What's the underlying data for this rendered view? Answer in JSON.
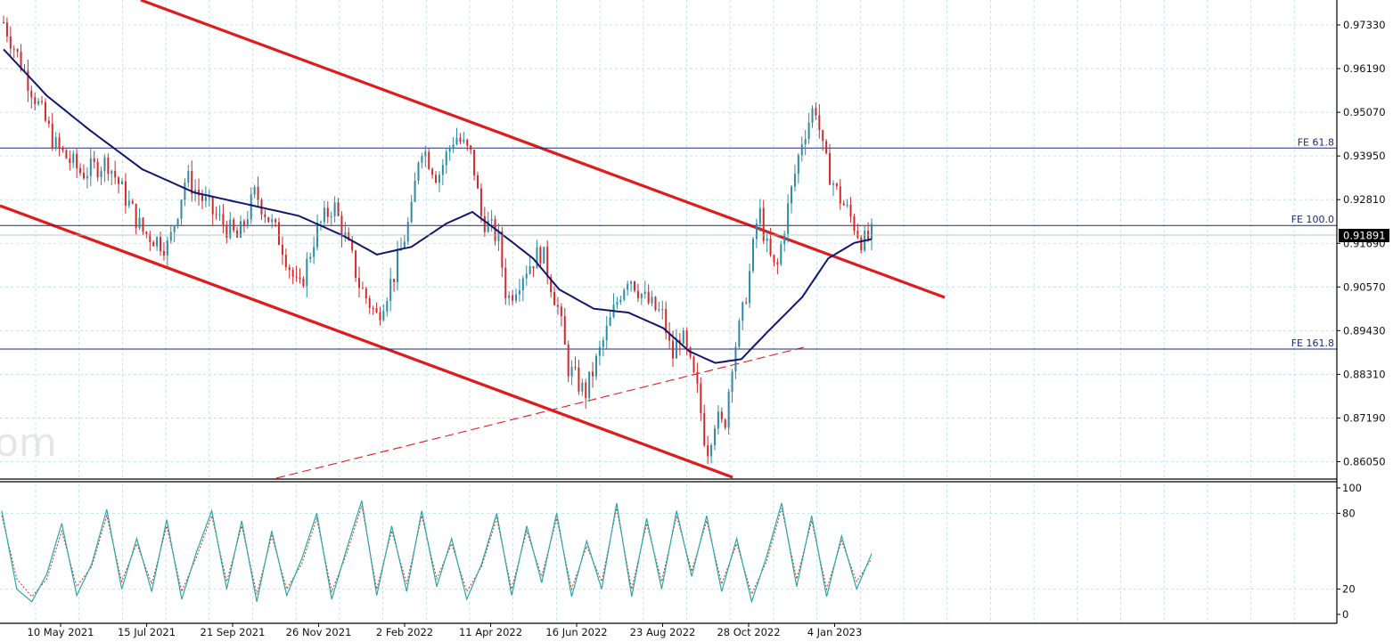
{
  "watermark": "om",
  "colors": {
    "background": "#ffffff",
    "grid": "#b8dde6",
    "candle_up": "#2e8ba3",
    "candle_down": "#cf2b2b",
    "moving_average": "#14156e",
    "trend_lines": "#e11b1b",
    "fib_lines": "#1c2a7a",
    "stoch_main": "#2aa8a8",
    "stoch_signal": "#c0392b",
    "price_tag_bg": "#000000",
    "price_tag_fg": "#ffffff"
  },
  "chart_data": [
    {
      "type": "candlestick",
      "title": "",
      "current_price": "0.91891",
      "ylim": [
        0.8555,
        0.9785
      ],
      "y_ticks": [
        "0.97330",
        "0.96190",
        "0.95070",
        "0.93950",
        "0.92810",
        "0.91690",
        "0.90570",
        "0.89430",
        "0.88310",
        "0.87190",
        "0.86050"
      ],
      "x_ticks": [
        "10 May 2021",
        "15 Jul 2021",
        "21 Sep 2021",
        "26 Nov 2021",
        "2 Feb 2022",
        "11 Apr 2022",
        "16 Jun 2022",
        "23 Aug 2022",
        "28 Oct 2022",
        "4 Jan 2023"
      ],
      "fib_levels": [
        {
          "name": "FE 61.8",
          "value": 0.9415
        },
        {
          "name": "FE 100.0",
          "value": 0.9215
        },
        {
          "name": "FE 161.8",
          "value": 0.8896
        }
      ],
      "price_path": [
        [
          0,
          0.974
        ],
        [
          0.03,
          0.958
        ],
        [
          0.06,
          0.942
        ],
        [
          0.09,
          0.935
        ],
        [
          0.12,
          0.938
        ],
        [
          0.16,
          0.92
        ],
        [
          0.19,
          0.916
        ],
        [
          0.21,
          0.934
        ],
        [
          0.24,
          0.925
        ],
        [
          0.27,
          0.918
        ],
        [
          0.29,
          0.93
        ],
        [
          0.32,
          0.917
        ],
        [
          0.34,
          0.904
        ],
        [
          0.36,
          0.92
        ],
        [
          0.38,
          0.927
        ],
        [
          0.4,
          0.914
        ],
        [
          0.41,
          0.906
        ],
        [
          0.43,
          0.898
        ],
        [
          0.45,
          0.909
        ],
        [
          0.47,
          0.925
        ],
        [
          0.48,
          0.943
        ],
        [
          0.5,
          0.934
        ],
        [
          0.52,
          0.945
        ],
        [
          0.54,
          0.939
        ],
        [
          0.55,
          0.924
        ],
        [
          0.57,
          0.918
        ],
        [
          0.58,
          0.902
        ],
        [
          0.6,
          0.91
        ],
        [
          0.62,
          0.915
        ],
        [
          0.64,
          0.899
        ],
        [
          0.65,
          0.885
        ],
        [
          0.67,
          0.878
        ],
        [
          0.69,
          0.891
        ],
        [
          0.71,
          0.904
        ],
        [
          0.72,
          0.909
        ],
        [
          0.74,
          0.902
        ],
        [
          0.76,
          0.898
        ],
        [
          0.77,
          0.887
        ],
        [
          0.78,
          0.894
        ],
        [
          0.8,
          0.878
        ],
        [
          0.81,
          0.863
        ],
        [
          0.82,
          0.872
        ],
        [
          0.83,
          0.869
        ],
        [
          0.84,
          0.888
        ],
        [
          0.85,
          0.897
        ],
        [
          0.86,
          0.91
        ],
        [
          0.87,
          0.926
        ],
        [
          0.88,
          0.915
        ],
        [
          0.89,
          0.909
        ],
        [
          0.9,
          0.922
        ],
        [
          0.91,
          0.933
        ],
        [
          0.92,
          0.944
        ],
        [
          0.935,
          0.953
        ],
        [
          0.945,
          0.939
        ],
        [
          0.96,
          0.93
        ],
        [
          0.975,
          0.924
        ],
        [
          0.99,
          0.917
        ],
        [
          1.0,
          0.919
        ]
      ],
      "moving_average_path": [
        [
          0,
          0.967
        ],
        [
          0.05,
          0.955
        ],
        [
          0.1,
          0.946
        ],
        [
          0.16,
          0.936
        ],
        [
          0.22,
          0.93
        ],
        [
          0.28,
          0.927
        ],
        [
          0.34,
          0.924
        ],
        [
          0.39,
          0.919
        ],
        [
          0.43,
          0.914
        ],
        [
          0.47,
          0.916
        ],
        [
          0.51,
          0.922
        ],
        [
          0.54,
          0.925
        ],
        [
          0.57,
          0.92
        ],
        [
          0.61,
          0.913
        ],
        [
          0.64,
          0.905
        ],
        [
          0.68,
          0.9
        ],
        [
          0.72,
          0.899
        ],
        [
          0.76,
          0.895
        ],
        [
          0.79,
          0.889
        ],
        [
          0.82,
          0.886
        ],
        [
          0.85,
          0.887
        ],
        [
          0.88,
          0.894
        ],
        [
          0.92,
          0.903
        ],
        [
          0.95,
          0.913
        ],
        [
          0.98,
          0.917
        ],
        [
          1.0,
          0.918
        ]
      ]
    },
    {
      "type": "line",
      "title": "",
      "ylim": [
        0,
        100
      ],
      "y_ticks": [
        "100",
        "80",
        "20",
        "0"
      ],
      "series": [
        {
          "values": [
            82,
            20,
            10,
            32,
            72,
            15,
            40,
            83,
            20,
            60,
            18,
            75,
            12,
            50,
            82,
            20,
            74,
            10,
            66,
            15,
            44,
            80,
            12,
            52,
            90,
            15,
            70,
            18,
            82,
            22,
            60,
            12,
            40,
            80,
            15,
            70,
            25,
            80,
            14,
            58,
            20,
            88,
            14,
            76,
            20,
            82,
            30,
            78,
            18,
            60,
            10,
            46,
            88,
            22,
            78,
            14,
            62,
            20,
            48
          ]
        },
        {
          "values": [
            78,
            28,
            14,
            28,
            66,
            22,
            38,
            78,
            26,
            56,
            24,
            70,
            18,
            46,
            78,
            26,
            70,
            16,
            62,
            20,
            40,
            76,
            18,
            48,
            86,
            20,
            66,
            24,
            78,
            28,
            56,
            18,
            38,
            76,
            20,
            66,
            30,
            76,
            20,
            54,
            26,
            84,
            20,
            72,
            26,
            78,
            34,
            74,
            24,
            56,
            16,
            42,
            84,
            28,
            74,
            20,
            58,
            26,
            44
          ]
        }
      ]
    }
  ]
}
